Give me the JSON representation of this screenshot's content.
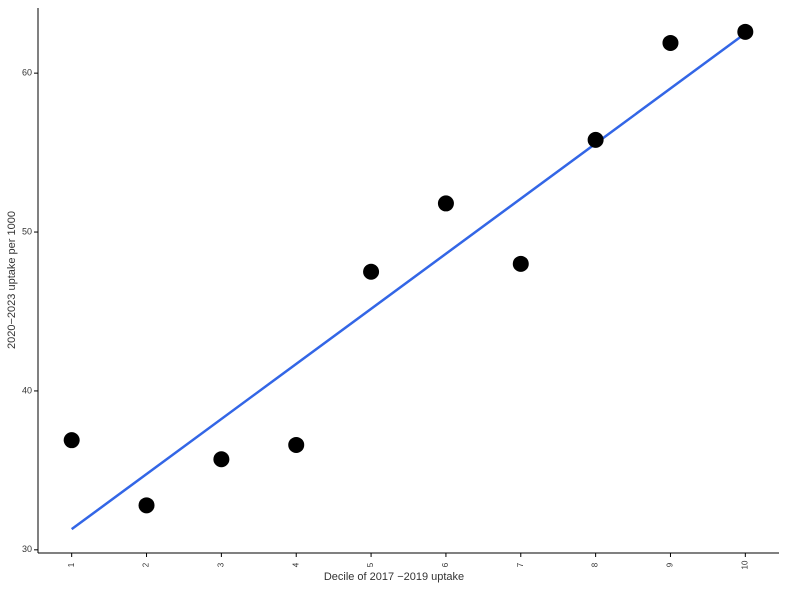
{
  "chart_data": {
    "type": "scatter",
    "x_label": "Decile of 2017 −2019 uptake",
    "y_label": "2020−2023 uptake per 1000",
    "x": [
      1,
      2,
      3,
      4,
      5,
      6,
      7,
      8,
      9,
      10
    ],
    "series": [
      {
        "color": "#000000",
        "values": [
          36.9,
          32.8,
          35.7,
          36.6,
          47.5,
          51.8,
          48.0,
          55.8,
          61.9,
          62.6
        ]
      }
    ],
    "fit": {
      "color": "#3366e6",
      "x": [
        1,
        10
      ],
      "values": [
        31.3,
        62.5
      ]
    },
    "xlim": [
      0.55,
      10.45
    ],
    "ylim": [
      29.8,
      64.1
    ],
    "xticks": [
      1,
      2,
      3,
      4,
      5,
      6,
      7,
      8,
      9,
      10
    ],
    "yticks": [
      30,
      40,
      50,
      60
    ]
  }
}
